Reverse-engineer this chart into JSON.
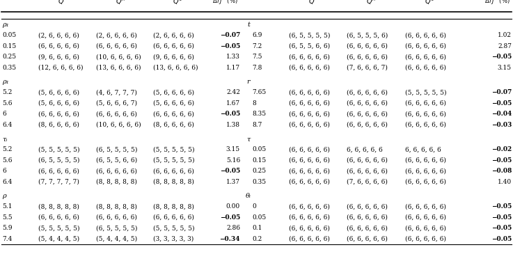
{
  "sections": [
    {
      "left_param_label": "ρ₁",
      "right_section_label": "t",
      "left_rows": [
        {
          "param": "0.05",
          "Qs": "(2, 6, 6, 6, 6)",
          "Qh": "(2, 6, 6, 6, 6)",
          "Q0": "(2, 6, 6, 6, 6)",
          "dtj": "−0.07",
          "bold": true
        },
        {
          "param": "0.15",
          "Qs": "(6, 6, 6, 6, 6)",
          "Qh": "(6, 6, 6, 6, 6)",
          "Q0": "(6, 6, 6, 6, 6)",
          "dtj": "−0.05",
          "bold": true
        },
        {
          "param": "0.25",
          "Qs": "(9, 6, 6, 6, 6)",
          "Qh": "(10, 6, 6, 6, 6)",
          "Q0": "(9, 6, 6, 6, 6)",
          "dtj": "1.33",
          "bold": false
        },
        {
          "param": "0.35",
          "Qs": "(12, 6, 6, 6, 6)",
          "Qh": "(13, 6, 6, 6, 6)",
          "Q0": "(13, 6, 6, 6, 6)",
          "dtj": "1.17",
          "bold": false
        }
      ],
      "right_rows": [
        {
          "param": "6.9",
          "Qs": "(6, 5, 5, 5, 5)",
          "Qh": "(6, 5, 5, 5, 6)",
          "Q0": "(6, 6, 6, 6, 6)",
          "dtj": "1.02",
          "bold": false
        },
        {
          "param": "7.2",
          "Qs": "(6, 5, 5, 6, 6)",
          "Qh": "(6, 6, 6, 6, 6)",
          "Q0": "(6, 6, 6, 6, 6)",
          "dtj": "2.87",
          "bold": false
        },
        {
          "param": "7.5",
          "Qs": "(6, 6, 6, 6, 6)",
          "Qh": "(6, 6, 6, 6, 6)",
          "Q0": "(6, 6, 6, 6, 6)",
          "dtj": "−0.05",
          "bold": true
        },
        {
          "param": "7.8",
          "Qs": "(6, 6, 6, 6, 6)",
          "Qh": "(7, 6, 6, 6, 7)",
          "Q0": "(6, 6, 6, 6, 6)",
          "dtj": "3.15",
          "bold": false
        }
      ]
    },
    {
      "left_param_label": "ρ₁",
      "right_section_label": "r",
      "left_rows": [
        {
          "param": "5.2",
          "Qs": "(5, 6, 6, 6, 6)",
          "Qh": "(4, 6, 7, 7, 7)",
          "Q0": "(5, 6, 6, 6, 6)",
          "dtj": "2.42",
          "bold": false
        },
        {
          "param": "5.6",
          "Qs": "(5, 6, 6, 6, 6)",
          "Qh": "(5, 6, 6, 6, 7)",
          "Q0": "(5, 6, 6, 6, 6)",
          "dtj": "1.67",
          "bold": false
        },
        {
          "param": "6",
          "Qs": "(6, 6, 6, 6, 6)",
          "Qh": "(6, 6, 6, 6, 6)",
          "Q0": "(6, 6, 6, 6, 6)",
          "dtj": "−0.05",
          "bold": true
        },
        {
          "param": "6.4",
          "Qs": "(8, 6, 6, 6, 6)",
          "Qh": "(10, 6, 6, 6, 6)",
          "Q0": "(8, 6, 6, 6, 6)",
          "dtj": "1.38",
          "bold": false
        }
      ],
      "right_rows": [
        {
          "param": "7.65",
          "Qs": "(6, 6, 6, 6, 6)",
          "Qh": "(6, 6, 6, 6, 6)",
          "Q0": "(5, 5, 5, 5, 5)",
          "dtj": "−0.07",
          "bold": true
        },
        {
          "param": "8",
          "Qs": "(6, 6, 6, 6, 6)",
          "Qh": "(6, 6, 6, 6, 6)",
          "Q0": "(6, 6, 6, 6, 6)",
          "dtj": "−0.05",
          "bold": true
        },
        {
          "param": "8.35",
          "Qs": "(6, 6, 6, 6, 6)",
          "Qh": "(6, 6, 6, 6, 6)",
          "Q0": "(6, 6, 6, 6, 6)",
          "dtj": "−0.04",
          "bold": true
        },
        {
          "param": "8.7",
          "Qs": "(6, 6, 6, 6, 6)",
          "Qh": "(6, 6, 6, 6, 6)",
          "Q0": "(6, 6, 6, 6, 6)",
          "dtj": "−0.03",
          "bold": true
        }
      ]
    },
    {
      "left_param_label": "τᵢ",
      "right_section_label": "τ",
      "left_rows": [
        {
          "param": "5.2",
          "Qs": "(5, 5, 5, 5, 5)",
          "Qh": "(6, 5, 5, 5, 5)",
          "Q0": "(5, 5, 5, 5, 5)",
          "dtj": "3.15",
          "bold": false
        },
        {
          "param": "5.6",
          "Qs": "(6, 5, 5, 5, 5)",
          "Qh": "(6, 5, 5, 6, 6)",
          "Q0": "(5, 5, 5, 5, 5)",
          "dtj": "5.16",
          "bold": false
        },
        {
          "param": "6",
          "Qs": "(6, 6, 6, 6, 6)",
          "Qh": "(6, 6, 6, 6, 6)",
          "Q0": "(6, 6, 6, 6, 6)",
          "dtj": "−0.05",
          "bold": true
        },
        {
          "param": "6.4",
          "Qs": "(7, 7, 7, 7, 7)",
          "Qh": "(8, 8, 8, 8, 8)",
          "Q0": "(8, 8, 8, 8, 8)",
          "dtj": "1.37",
          "bold": false
        }
      ],
      "right_rows": [
        {
          "param": "0.05",
          "Qs": "(6, 6, 6, 6, 6)",
          "Qh": "6, 6, 6, 6, 6",
          "Q0": "6, 6, 6, 6, 6",
          "dtj": "−0.02",
          "bold": true
        },
        {
          "param": "0.15",
          "Qs": "(6, 6, 6, 6, 6)",
          "Qh": "(6, 6, 6, 6, 6)",
          "Q0": "(6, 6, 6, 6, 6)",
          "dtj": "−0.05",
          "bold": true
        },
        {
          "param": "0.25",
          "Qs": "(6, 6, 6, 6, 6)",
          "Qh": "(6, 6, 6, 6, 6)",
          "Q0": "(6, 6, 6, 6, 6)",
          "dtj": "−0.08",
          "bold": true
        },
        {
          "param": "0.35",
          "Qs": "(6, 6, 6, 6, 6)",
          "Qh": "(7, 6, 6, 6, 6)",
          "Q0": "(6, 6, 6, 6, 6)",
          "dtj": "1.40",
          "bold": false
        }
      ]
    },
    {
      "left_param_label": "ρ",
      "right_section_label": "θᵢ",
      "left_rows": [
        {
          "param": "5.1",
          "Qs": "(8, 8, 8, 8, 8)",
          "Qh": "(8, 8, 8, 8, 8)",
          "Q0": "(8, 8, 8, 8, 8)",
          "dtj": "0.00",
          "bold": false
        },
        {
          "param": "5.5",
          "Qs": "(6, 6, 6, 6, 6)",
          "Qh": "(6, 6, 6, 6, 6)",
          "Q0": "(6, 6, 6, 6, 6)",
          "dtj": "−0.05",
          "bold": true
        },
        {
          "param": "5.9",
          "Qs": "(5, 5, 5, 5, 5)",
          "Qh": "(6, 5, 5, 5, 5)",
          "Q0": "(5, 5, 5, 5, 5)",
          "dtj": "2.86",
          "bold": false
        },
        {
          "param": "7.4",
          "Qs": "(5, 4, 4, 4, 5)",
          "Qh": "(5, 4, 4, 4, 5)",
          "Q0": "(3, 3, 3, 3, 3)",
          "dtj": "−0.34",
          "bold": true
        }
      ],
      "right_rows": [
        {
          "param": "0",
          "Qs": "(6, 6, 6, 6, 6)",
          "Qh": "(6, 6, 6, 6, 6)",
          "Q0": "(6, 6, 6, 6, 6)",
          "dtj": "−0.05",
          "bold": true
        },
        {
          "param": "0.05",
          "Qs": "(6, 6, 6, 6, 6)",
          "Qh": "(6, 6, 6, 6, 6)",
          "Q0": "(6, 6, 6, 6, 6)",
          "dtj": "−0.05",
          "bold": true
        },
        {
          "param": "0.1",
          "Qs": "(6, 6, 6, 6, 6)",
          "Qh": "(6, 6, 6, 6, 6)",
          "Q0": "(6, 6, 6, 6, 6)",
          "dtj": "−0.05",
          "bold": true
        },
        {
          "param": "0.2",
          "Qs": "(6, 6, 6, 6, 6)",
          "Qh": "(6, 6, 6, 6, 6)",
          "Q0": "(6, 6, 6, 6, 6)",
          "dtj": "−0.05",
          "bold": true
        }
      ]
    }
  ]
}
